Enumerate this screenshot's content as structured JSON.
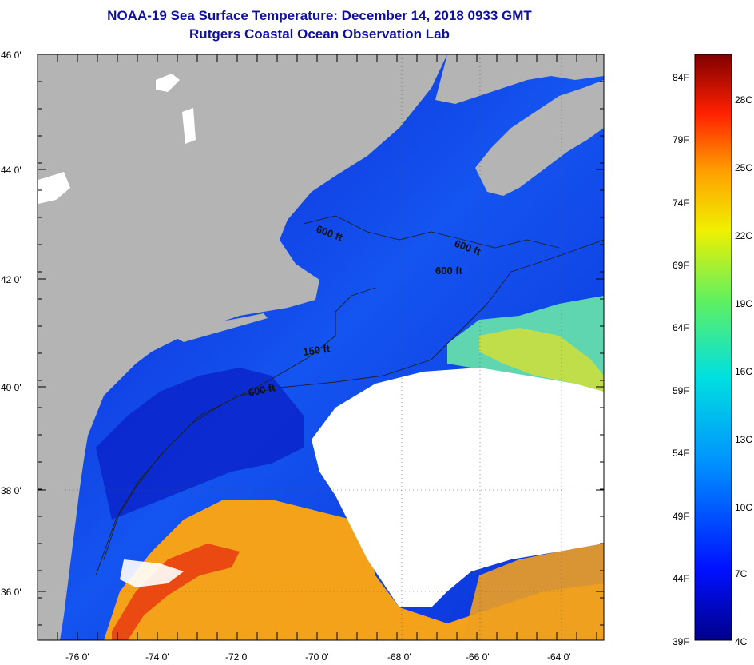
{
  "title": "NOAA-19 Sea Surface Temperature:  December 14, 2018 0933 GMT",
  "subtitle": "Rutgers Coastal Ocean Observation Lab",
  "map": {
    "lat_labels": [
      "46 0'",
      "44 0'",
      "42 0'",
      "40 0'",
      "38 0'",
      "36 0'"
    ],
    "lon_labels": [
      "-76 0'",
      "-74 0'",
      "-72 0'",
      "-70 0'",
      "-68 0'",
      "-66 0'",
      "-64 0'"
    ],
    "contour_labels": [
      "600 ft",
      "600 ft",
      "600 ft",
      "150 ft",
      "600 ft"
    ],
    "colors": {
      "land": "#b4b4b4",
      "cloud": "#ffffff",
      "cold": "#0a2ed6",
      "warm": "#f4a21a",
      "hot": "#e83a10",
      "front": "#60e0a0"
    }
  },
  "colorbar": {
    "fahrenheit": [
      "84F",
      "79F",
      "74F",
      "69F",
      "64F",
      "59F",
      "54F",
      "49F",
      "44F",
      "39F"
    ],
    "celsius": [
      "28C",
      "25C",
      "22C",
      "19C",
      "16C",
      "13C",
      "10C",
      "7C",
      "4C"
    ]
  }
}
